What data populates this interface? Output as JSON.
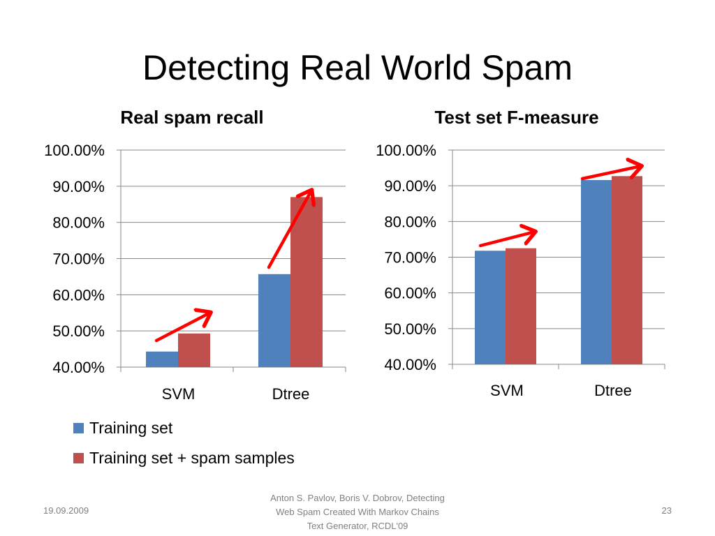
{
  "slide": {
    "title": "Detecting Real World Spam",
    "footer": {
      "date": "19.09.2009",
      "citation": "Anton S. Pavlov, Boris V. Dobrov, Detecting\nWeb Spam Created With Markov Chains\nText Generator, RCDL'09",
      "page": "23"
    }
  },
  "legend": {
    "items": [
      {
        "label": "Training set",
        "color": "#4f81bd"
      },
      {
        "label": "Training set + spam samples",
        "color": "#c0504d"
      }
    ]
  },
  "arrow_color": "#ff0000",
  "chart_data": [
    {
      "type": "bar",
      "title": "Real spam recall",
      "categories": [
        "SVM",
        "Dtree"
      ],
      "series": [
        {
          "name": "Training set",
          "color": "#4f81bd",
          "values": [
            44.3,
            65.7
          ]
        },
        {
          "name": "Training set + spam samples",
          "color": "#c0504d",
          "values": [
            49.3,
            87.0
          ]
        }
      ],
      "ylim": [
        40,
        100
      ],
      "yticks": [
        "40.00%",
        "50.00%",
        "60.00%",
        "70.00%",
        "80.00%",
        "90.00%",
        "100.00%"
      ],
      "grid": true,
      "legend": "bottom-left"
    },
    {
      "type": "bar",
      "title": "Test set F-measure",
      "categories": [
        "SVM",
        "Dtree"
      ],
      "series": [
        {
          "name": "Training set",
          "color": "#4f81bd",
          "values": [
            71.8,
            91.6
          ]
        },
        {
          "name": "Training set + spam samples",
          "color": "#c0504d",
          "values": [
            72.5,
            92.7
          ]
        }
      ],
      "ylim": [
        40,
        100
      ],
      "yticks": [
        "40.00%",
        "50.00%",
        "60.00%",
        "70.00%",
        "80.00%",
        "90.00%",
        "100.00%"
      ],
      "grid": true
    }
  ]
}
